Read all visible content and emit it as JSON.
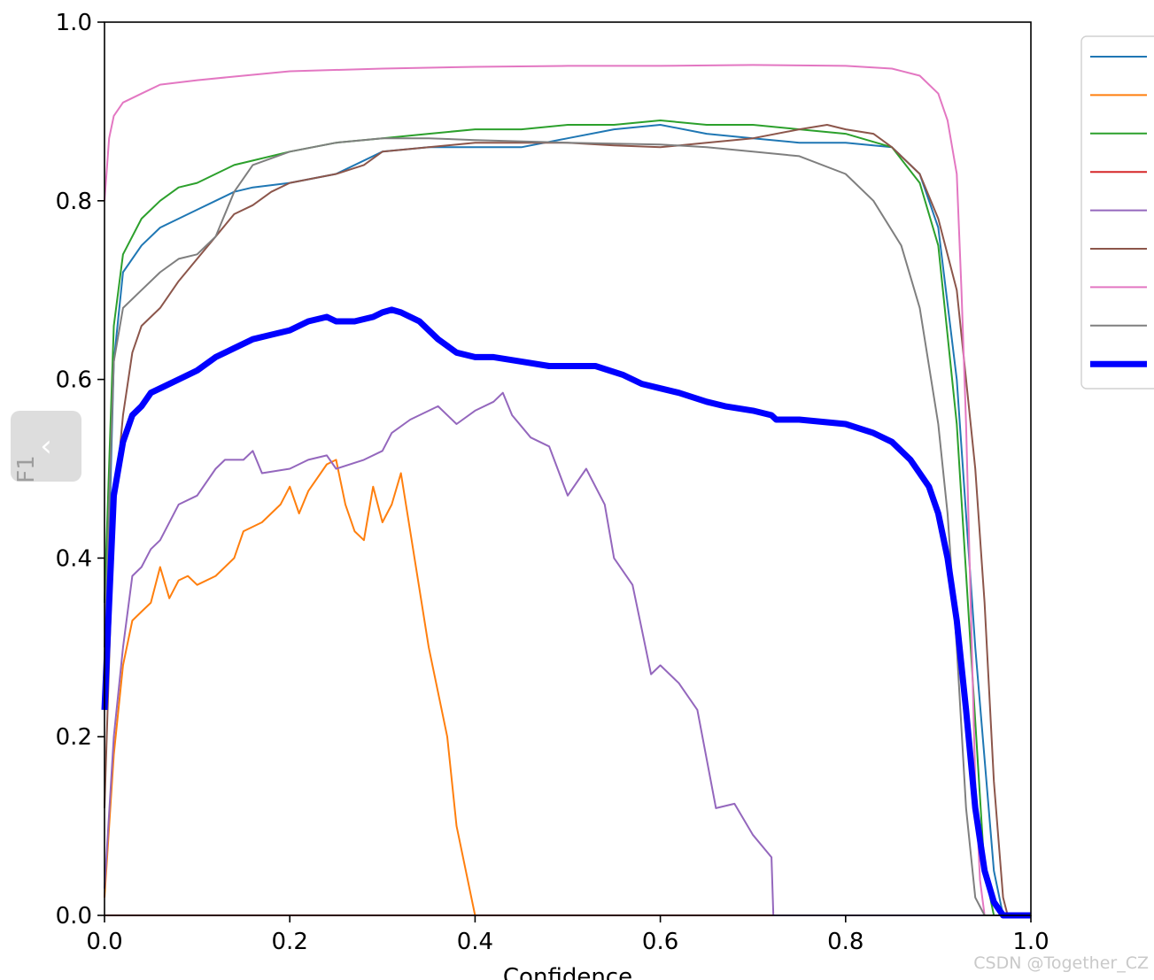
{
  "nav": {
    "back_icon": "chevron-left-icon",
    "back_glyph": "‹"
  },
  "watermark": "CSDN @Together_CZ",
  "chart_data": {
    "type": "line",
    "title": "",
    "xlabel": "Confidence",
    "ylabel": "F1",
    "xlim": [
      0,
      1
    ],
    "ylim": [
      0,
      1
    ],
    "xticks": [
      "0.0",
      "0.2",
      "0.4",
      "0.6",
      "0.8",
      "1.0"
    ],
    "yticks": [
      "0.0",
      "0.2",
      "0.4",
      "0.6",
      "0.8",
      "1.0"
    ],
    "grid": false,
    "legend_position": "upper-right (cut off)",
    "series": [
      {
        "color": "#1f77b4",
        "width": 2,
        "points": [
          [
            0,
            0.23
          ],
          [
            0.01,
            0.62
          ],
          [
            0.02,
            0.72
          ],
          [
            0.04,
            0.75
          ],
          [
            0.06,
            0.77
          ],
          [
            0.08,
            0.78
          ],
          [
            0.1,
            0.79
          ],
          [
            0.12,
            0.8
          ],
          [
            0.14,
            0.81
          ],
          [
            0.16,
            0.815
          ],
          [
            0.2,
            0.82
          ],
          [
            0.25,
            0.83
          ],
          [
            0.3,
            0.855
          ],
          [
            0.35,
            0.86
          ],
          [
            0.4,
            0.86
          ],
          [
            0.45,
            0.86
          ],
          [
            0.5,
            0.87
          ],
          [
            0.55,
            0.88
          ],
          [
            0.6,
            0.885
          ],
          [
            0.65,
            0.875
          ],
          [
            0.7,
            0.87
          ],
          [
            0.75,
            0.865
          ],
          [
            0.8,
            0.865
          ],
          [
            0.85,
            0.86
          ],
          [
            0.88,
            0.83
          ],
          [
            0.9,
            0.77
          ],
          [
            0.92,
            0.6
          ],
          [
            0.94,
            0.3
          ],
          [
            0.96,
            0.05
          ],
          [
            0.97,
            0.0
          ],
          [
            1.0,
            0.0
          ]
        ]
      },
      {
        "color": "#ff7f0e",
        "width": 2,
        "points": [
          [
            0,
            0.02
          ],
          [
            0.01,
            0.18
          ],
          [
            0.02,
            0.28
          ],
          [
            0.03,
            0.33
          ],
          [
            0.04,
            0.34
          ],
          [
            0.05,
            0.35
          ],
          [
            0.06,
            0.39
          ],
          [
            0.07,
            0.355
          ],
          [
            0.08,
            0.375
          ],
          [
            0.09,
            0.38
          ],
          [
            0.1,
            0.37
          ],
          [
            0.12,
            0.38
          ],
          [
            0.14,
            0.4
          ],
          [
            0.15,
            0.43
          ],
          [
            0.17,
            0.44
          ],
          [
            0.19,
            0.46
          ],
          [
            0.2,
            0.48
          ],
          [
            0.21,
            0.45
          ],
          [
            0.22,
            0.475
          ],
          [
            0.24,
            0.505
          ],
          [
            0.25,
            0.51
          ],
          [
            0.26,
            0.46
          ],
          [
            0.27,
            0.43
          ],
          [
            0.28,
            0.42
          ],
          [
            0.29,
            0.48
          ],
          [
            0.3,
            0.44
          ],
          [
            0.31,
            0.46
          ],
          [
            0.32,
            0.495
          ],
          [
            0.33,
            0.43
          ],
          [
            0.35,
            0.3
          ],
          [
            0.37,
            0.2
          ],
          [
            0.38,
            0.1
          ],
          [
            0.4,
            0.0
          ],
          [
            1.0,
            0.0
          ]
        ]
      },
      {
        "color": "#2ca02c",
        "width": 2,
        "points": [
          [
            0,
            0.35
          ],
          [
            0.01,
            0.66
          ],
          [
            0.02,
            0.74
          ],
          [
            0.04,
            0.78
          ],
          [
            0.06,
            0.8
          ],
          [
            0.08,
            0.815
          ],
          [
            0.1,
            0.82
          ],
          [
            0.12,
            0.83
          ],
          [
            0.14,
            0.84
          ],
          [
            0.16,
            0.845
          ],
          [
            0.2,
            0.855
          ],
          [
            0.25,
            0.865
          ],
          [
            0.3,
            0.87
          ],
          [
            0.35,
            0.875
          ],
          [
            0.4,
            0.88
          ],
          [
            0.45,
            0.88
          ],
          [
            0.5,
            0.885
          ],
          [
            0.55,
            0.885
          ],
          [
            0.6,
            0.89
          ],
          [
            0.65,
            0.885
          ],
          [
            0.7,
            0.885
          ],
          [
            0.75,
            0.88
          ],
          [
            0.8,
            0.875
          ],
          [
            0.85,
            0.86
          ],
          [
            0.88,
            0.82
          ],
          [
            0.9,
            0.75
          ],
          [
            0.92,
            0.55
          ],
          [
            0.935,
            0.3
          ],
          [
            0.95,
            0.05
          ],
          [
            0.96,
            0.0
          ],
          [
            1.0,
            0.0
          ]
        ]
      },
      {
        "color": "#d62728",
        "width": 2,
        "points": [
          [
            0,
            0.0
          ],
          [
            1.0,
            0.0
          ]
        ]
      },
      {
        "color": "#9467bd",
        "width": 2,
        "points": [
          [
            0,
            0.03
          ],
          [
            0.01,
            0.2
          ],
          [
            0.02,
            0.3
          ],
          [
            0.03,
            0.38
          ],
          [
            0.04,
            0.39
          ],
          [
            0.05,
            0.41
          ],
          [
            0.06,
            0.42
          ],
          [
            0.08,
            0.46
          ],
          [
            0.1,
            0.47
          ],
          [
            0.12,
            0.5
          ],
          [
            0.13,
            0.51
          ],
          [
            0.15,
            0.51
          ],
          [
            0.16,
            0.52
          ],
          [
            0.17,
            0.495
          ],
          [
            0.2,
            0.5
          ],
          [
            0.22,
            0.51
          ],
          [
            0.24,
            0.515
          ],
          [
            0.25,
            0.5
          ],
          [
            0.28,
            0.51
          ],
          [
            0.3,
            0.52
          ],
          [
            0.31,
            0.54
          ],
          [
            0.33,
            0.555
          ],
          [
            0.36,
            0.57
          ],
          [
            0.38,
            0.55
          ],
          [
            0.4,
            0.565
          ],
          [
            0.42,
            0.575
          ],
          [
            0.43,
            0.585
          ],
          [
            0.44,
            0.56
          ],
          [
            0.46,
            0.535
          ],
          [
            0.48,
            0.525
          ],
          [
            0.5,
            0.47
          ],
          [
            0.52,
            0.5
          ],
          [
            0.54,
            0.46
          ],
          [
            0.55,
            0.4
          ],
          [
            0.57,
            0.37
          ],
          [
            0.58,
            0.32
          ],
          [
            0.59,
            0.27
          ],
          [
            0.6,
            0.28
          ],
          [
            0.62,
            0.26
          ],
          [
            0.64,
            0.23
          ],
          [
            0.66,
            0.12
          ],
          [
            0.68,
            0.125
          ],
          [
            0.7,
            0.09
          ],
          [
            0.72,
            0.065
          ],
          [
            0.722,
            0.0
          ],
          [
            1.0,
            0.0
          ]
        ]
      },
      {
        "color": "#8c564b",
        "width": 2,
        "points": [
          [
            0,
            0.12
          ],
          [
            0.01,
            0.45
          ],
          [
            0.02,
            0.56
          ],
          [
            0.03,
            0.63
          ],
          [
            0.04,
            0.66
          ],
          [
            0.06,
            0.68
          ],
          [
            0.08,
            0.71
          ],
          [
            0.1,
            0.735
          ],
          [
            0.12,
            0.76
          ],
          [
            0.14,
            0.785
          ],
          [
            0.16,
            0.795
          ],
          [
            0.18,
            0.81
          ],
          [
            0.2,
            0.82
          ],
          [
            0.25,
            0.83
          ],
          [
            0.28,
            0.84
          ],
          [
            0.3,
            0.855
          ],
          [
            0.35,
            0.86
          ],
          [
            0.4,
            0.865
          ],
          [
            0.45,
            0.865
          ],
          [
            0.5,
            0.865
          ],
          [
            0.55,
            0.862
          ],
          [
            0.6,
            0.86
          ],
          [
            0.65,
            0.865
          ],
          [
            0.7,
            0.87
          ],
          [
            0.75,
            0.88
          ],
          [
            0.78,
            0.885
          ],
          [
            0.8,
            0.88
          ],
          [
            0.83,
            0.875
          ],
          [
            0.85,
            0.86
          ],
          [
            0.88,
            0.83
          ],
          [
            0.9,
            0.78
          ],
          [
            0.92,
            0.7
          ],
          [
            0.93,
            0.6
          ],
          [
            0.94,
            0.5
          ],
          [
            0.95,
            0.35
          ],
          [
            0.96,
            0.15
          ],
          [
            0.97,
            0.02
          ],
          [
            0.975,
            0.0
          ],
          [
            1.0,
            0.0
          ]
        ]
      },
      {
        "color": "#e377c2",
        "width": 2,
        "points": [
          [
            0,
            0.8
          ],
          [
            0.005,
            0.87
          ],
          [
            0.01,
            0.895
          ],
          [
            0.02,
            0.91
          ],
          [
            0.04,
            0.92
          ],
          [
            0.06,
            0.93
          ],
          [
            0.1,
            0.935
          ],
          [
            0.15,
            0.94
          ],
          [
            0.2,
            0.945
          ],
          [
            0.3,
            0.948
          ],
          [
            0.4,
            0.95
          ],
          [
            0.5,
            0.951
          ],
          [
            0.6,
            0.951
          ],
          [
            0.7,
            0.952
          ],
          [
            0.8,
            0.951
          ],
          [
            0.85,
            0.948
          ],
          [
            0.88,
            0.94
          ],
          [
            0.9,
            0.92
          ],
          [
            0.91,
            0.89
          ],
          [
            0.92,
            0.83
          ],
          [
            0.925,
            0.7
          ],
          [
            0.93,
            0.55
          ],
          [
            0.935,
            0.35
          ],
          [
            0.94,
            0.15
          ],
          [
            0.945,
            0.04
          ],
          [
            0.95,
            0.0
          ],
          [
            1.0,
            0.0
          ]
        ]
      },
      {
        "color": "#7f7f7f",
        "width": 2,
        "points": [
          [
            0,
            0.3
          ],
          [
            0.01,
            0.62
          ],
          [
            0.02,
            0.68
          ],
          [
            0.04,
            0.7
          ],
          [
            0.06,
            0.72
          ],
          [
            0.08,
            0.735
          ],
          [
            0.1,
            0.74
          ],
          [
            0.12,
            0.76
          ],
          [
            0.14,
            0.81
          ],
          [
            0.16,
            0.84
          ],
          [
            0.2,
            0.855
          ],
          [
            0.25,
            0.865
          ],
          [
            0.3,
            0.87
          ],
          [
            0.35,
            0.87
          ],
          [
            0.4,
            0.868
          ],
          [
            0.5,
            0.865
          ],
          [
            0.6,
            0.863
          ],
          [
            0.65,
            0.86
          ],
          [
            0.7,
            0.855
          ],
          [
            0.75,
            0.85
          ],
          [
            0.8,
            0.83
          ],
          [
            0.83,
            0.8
          ],
          [
            0.86,
            0.75
          ],
          [
            0.88,
            0.68
          ],
          [
            0.9,
            0.55
          ],
          [
            0.91,
            0.45
          ],
          [
            0.92,
            0.3
          ],
          [
            0.93,
            0.12
          ],
          [
            0.94,
            0.02
          ],
          [
            0.95,
            0.0
          ],
          [
            1.0,
            0.0
          ]
        ]
      },
      {
        "color": "#0000ff",
        "width": 7,
        "points": [
          [
            0,
            0.23
          ],
          [
            0.01,
            0.47
          ],
          [
            0.02,
            0.53
          ],
          [
            0.03,
            0.56
          ],
          [
            0.04,
            0.57
          ],
          [
            0.05,
            0.585
          ],
          [
            0.06,
            0.59
          ],
          [
            0.08,
            0.6
          ],
          [
            0.1,
            0.61
          ],
          [
            0.12,
            0.625
          ],
          [
            0.14,
            0.635
          ],
          [
            0.16,
            0.645
          ],
          [
            0.18,
            0.65
          ],
          [
            0.2,
            0.655
          ],
          [
            0.22,
            0.665
          ],
          [
            0.24,
            0.67
          ],
          [
            0.25,
            0.665
          ],
          [
            0.27,
            0.665
          ],
          [
            0.29,
            0.67
          ],
          [
            0.3,
            0.675
          ],
          [
            0.31,
            0.678
          ],
          [
            0.32,
            0.675
          ],
          [
            0.34,
            0.665
          ],
          [
            0.36,
            0.645
          ],
          [
            0.38,
            0.63
          ],
          [
            0.4,
            0.625
          ],
          [
            0.42,
            0.625
          ],
          [
            0.45,
            0.62
          ],
          [
            0.48,
            0.615
          ],
          [
            0.5,
            0.615
          ],
          [
            0.53,
            0.615
          ],
          [
            0.56,
            0.605
          ],
          [
            0.58,
            0.595
          ],
          [
            0.6,
            0.59
          ],
          [
            0.62,
            0.585
          ],
          [
            0.65,
            0.575
          ],
          [
            0.67,
            0.57
          ],
          [
            0.7,
            0.565
          ],
          [
            0.72,
            0.56
          ],
          [
            0.725,
            0.555
          ],
          [
            0.75,
            0.555
          ],
          [
            0.78,
            0.552
          ],
          [
            0.8,
            0.55
          ],
          [
            0.83,
            0.54
          ],
          [
            0.85,
            0.53
          ],
          [
            0.87,
            0.51
          ],
          [
            0.89,
            0.48
          ],
          [
            0.9,
            0.45
          ],
          [
            0.91,
            0.4
          ],
          [
            0.92,
            0.33
          ],
          [
            0.93,
            0.23
          ],
          [
            0.94,
            0.12
          ],
          [
            0.95,
            0.05
          ],
          [
            0.96,
            0.015
          ],
          [
            0.97,
            0.0
          ],
          [
            1.0,
            0.0
          ]
        ]
      }
    ]
  }
}
